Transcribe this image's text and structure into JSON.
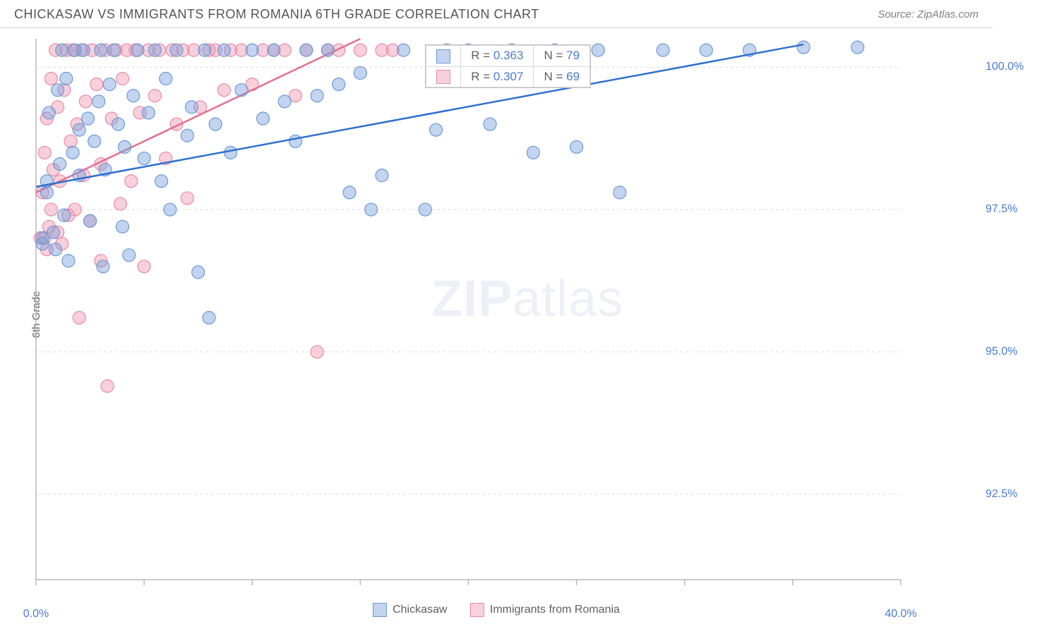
{
  "header": {
    "title": "CHICKASAW VS IMMIGRANTS FROM ROMANIA 6TH GRADE CORRELATION CHART",
    "source": "Source: ZipAtlas.com"
  },
  "axes": {
    "ylabel": "6th Grade",
    "x_min": 0.0,
    "x_max": 40.0,
    "y_min": 91.0,
    "y_max": 100.5,
    "x_ticks": [
      0,
      5,
      10,
      15,
      20,
      25,
      30,
      35,
      40
    ],
    "x_tick_labels": {
      "0": "0.0%",
      "40": "40.0%"
    },
    "y_ticks": [
      92.5,
      95.0,
      97.5,
      100.0
    ],
    "y_tick_labels": [
      "92.5%",
      "95.0%",
      "97.5%",
      "100.0%"
    ],
    "grid_color": "#d9d9d9",
    "axis_color": "#b8b8b8",
    "tick_label_color": "#4a7bd0"
  },
  "series": {
    "chickasaw": {
      "label": "Chickasaw",
      "fill": "rgba(120,160,220,0.45)",
      "stroke": "#6c99d6",
      "line_color": "#2f6fd0",
      "R": "0.363",
      "N": "79",
      "trend": {
        "x1": 0,
        "y1": 97.9,
        "x2": 35.5,
        "y2": 100.4
      },
      "points": [
        [
          0.3,
          97.0
        ],
        [
          0.3,
          96.9
        ],
        [
          0.5,
          97.8
        ],
        [
          0.5,
          98.0
        ],
        [
          0.6,
          99.2
        ],
        [
          0.8,
          97.1
        ],
        [
          0.9,
          96.8
        ],
        [
          1.0,
          99.6
        ],
        [
          1.1,
          98.3
        ],
        [
          1.2,
          100.3
        ],
        [
          1.3,
          97.4
        ],
        [
          1.4,
          99.8
        ],
        [
          1.5,
          96.6
        ],
        [
          1.7,
          98.5
        ],
        [
          1.8,
          100.3
        ],
        [
          2.0,
          98.9
        ],
        [
          2.0,
          98.1
        ],
        [
          2.2,
          100.3
        ],
        [
          2.4,
          99.1
        ],
        [
          2.5,
          97.3
        ],
        [
          2.7,
          98.7
        ],
        [
          2.9,
          99.4
        ],
        [
          3.0,
          100.3
        ],
        [
          3.1,
          96.5
        ],
        [
          3.2,
          98.2
        ],
        [
          3.4,
          99.7
        ],
        [
          3.6,
          100.3
        ],
        [
          3.8,
          99.0
        ],
        [
          4.0,
          97.2
        ],
        [
          4.1,
          98.6
        ],
        [
          4.3,
          96.7
        ],
        [
          4.5,
          99.5
        ],
        [
          4.7,
          100.3
        ],
        [
          5.0,
          98.4
        ],
        [
          5.2,
          99.2
        ],
        [
          5.5,
          100.3
        ],
        [
          5.8,
          98.0
        ],
        [
          6.0,
          99.8
        ],
        [
          6.2,
          97.5
        ],
        [
          6.5,
          100.3
        ],
        [
          7.0,
          98.8
        ],
        [
          7.2,
          99.3
        ],
        [
          7.5,
          96.4
        ],
        [
          7.8,
          100.3
        ],
        [
          8.0,
          95.6
        ],
        [
          8.3,
          99.0
        ],
        [
          8.7,
          100.3
        ],
        [
          9.0,
          98.5
        ],
        [
          9.5,
          99.6
        ],
        [
          10.0,
          100.3
        ],
        [
          10.5,
          99.1
        ],
        [
          11.0,
          100.3
        ],
        [
          11.5,
          99.4
        ],
        [
          12.0,
          98.7
        ],
        [
          12.5,
          100.3
        ],
        [
          13.0,
          99.5
        ],
        [
          13.5,
          100.3
        ],
        [
          14.0,
          99.7
        ],
        [
          14.5,
          97.8
        ],
        [
          15.0,
          99.9
        ],
        [
          15.5,
          97.5
        ],
        [
          16.0,
          98.1
        ],
        [
          17.0,
          100.3
        ],
        [
          18.0,
          97.5
        ],
        [
          18.5,
          98.9
        ],
        [
          19.0,
          100.3
        ],
        [
          20.0,
          100.3
        ],
        [
          21.0,
          99.0
        ],
        [
          22.0,
          100.3
        ],
        [
          23.0,
          98.5
        ],
        [
          24.0,
          100.3
        ],
        [
          25.0,
          98.6
        ],
        [
          26.0,
          100.3
        ],
        [
          27.0,
          97.8
        ],
        [
          29.0,
          100.3
        ],
        [
          31.0,
          100.3
        ],
        [
          33.0,
          100.3
        ],
        [
          35.5,
          100.35
        ],
        [
          38.0,
          100.35
        ]
      ]
    },
    "romania": {
      "label": "Immigrants from Romania",
      "fill": "rgba(240,150,175,0.45)",
      "stroke": "#e88aa5",
      "line_color": "#e36f92",
      "R": "0.307",
      "N": "69",
      "trend": {
        "x1": 0,
        "y1": 97.8,
        "x2": 15.0,
        "y2": 100.5
      },
      "points": [
        [
          0.2,
          97.0
        ],
        [
          0.3,
          97.8
        ],
        [
          0.4,
          97.0
        ],
        [
          0.4,
          98.5
        ],
        [
          0.5,
          99.1
        ],
        [
          0.5,
          96.8
        ],
        [
          0.6,
          97.2
        ],
        [
          0.7,
          99.8
        ],
        [
          0.7,
          97.5
        ],
        [
          0.8,
          98.2
        ],
        [
          0.9,
          100.3
        ],
        [
          1.0,
          97.1
        ],
        [
          1.0,
          99.3
        ],
        [
          1.1,
          98.0
        ],
        [
          1.2,
          96.9
        ],
        [
          1.3,
          99.6
        ],
        [
          1.4,
          100.3
        ],
        [
          1.5,
          97.4
        ],
        [
          1.6,
          98.7
        ],
        [
          1.7,
          100.3
        ],
        [
          1.8,
          97.5
        ],
        [
          1.9,
          99.0
        ],
        [
          2.0,
          95.6
        ],
        [
          2.1,
          100.3
        ],
        [
          2.2,
          98.1
        ],
        [
          2.3,
          99.4
        ],
        [
          2.5,
          97.3
        ],
        [
          2.6,
          100.3
        ],
        [
          2.8,
          99.7
        ],
        [
          3.0,
          98.3
        ],
        [
          3.0,
          96.6
        ],
        [
          3.2,
          100.3
        ],
        [
          3.3,
          94.4
        ],
        [
          3.5,
          99.1
        ],
        [
          3.7,
          100.3
        ],
        [
          3.9,
          97.6
        ],
        [
          4.0,
          99.8
        ],
        [
          4.2,
          100.3
        ],
        [
          4.4,
          98.0
        ],
        [
          4.6,
          100.3
        ],
        [
          4.8,
          99.2
        ],
        [
          5.0,
          96.5
        ],
        [
          5.2,
          100.3
        ],
        [
          5.5,
          99.5
        ],
        [
          5.7,
          100.3
        ],
        [
          6.0,
          98.4
        ],
        [
          6.3,
          100.3
        ],
        [
          6.5,
          99.0
        ],
        [
          6.8,
          100.3
        ],
        [
          7.0,
          97.7
        ],
        [
          7.3,
          100.3
        ],
        [
          7.6,
          99.3
        ],
        [
          8.0,
          100.3
        ],
        [
          8.3,
          100.3
        ],
        [
          8.7,
          99.6
        ],
        [
          9.0,
          100.3
        ],
        [
          9.5,
          100.3
        ],
        [
          10.0,
          99.7
        ],
        [
          10.5,
          100.3
        ],
        [
          11.0,
          100.3
        ],
        [
          11.5,
          100.3
        ],
        [
          12.0,
          99.5
        ],
        [
          12.5,
          100.3
        ],
        [
          13.0,
          95.0
        ],
        [
          13.5,
          100.3
        ],
        [
          14.0,
          100.3
        ],
        [
          15.0,
          100.3
        ],
        [
          16.0,
          100.3
        ],
        [
          16.5,
          100.3
        ]
      ]
    }
  },
  "watermark": {
    "zip": "ZIP",
    "atlas": "atlas"
  },
  "marker_radius": 9,
  "trend_line_width": 2.5
}
